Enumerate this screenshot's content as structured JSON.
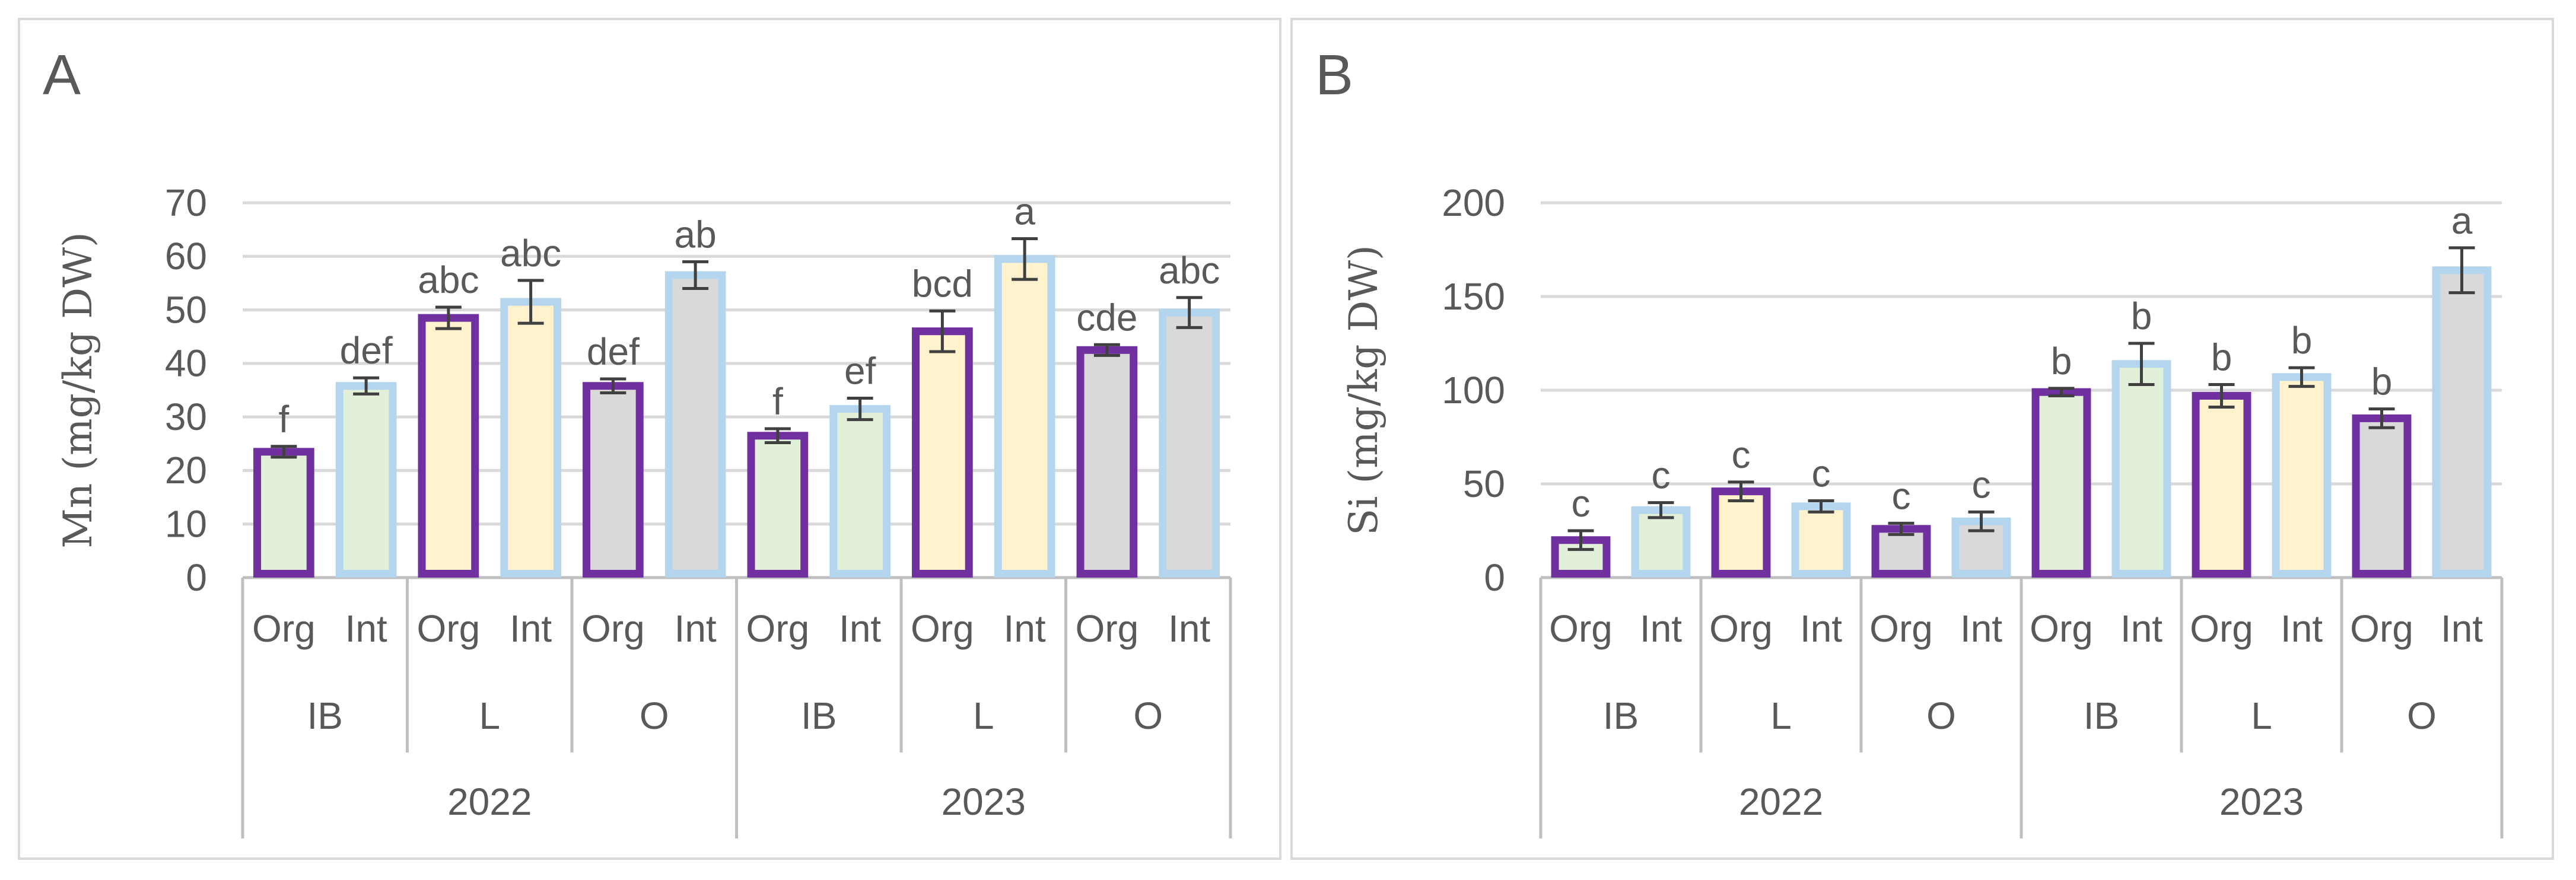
{
  "chart_data": [
    {
      "type": "bar",
      "panel": "A",
      "ylabel": "Mn (mg/kg DW)",
      "ylim": [
        0,
        70
      ],
      "yticks": [
        0,
        10,
        20,
        30,
        40,
        50,
        60,
        70
      ],
      "years": [
        {
          "label": "2022",
          "sites": [
            {
              "label": "IB",
              "bars": [
                {
                  "label": "Org",
                  "value": 23.5,
                  "error": 1.0,
                  "letter": "f"
                },
                {
                  "label": "Int",
                  "value": 35.8,
                  "error": 1.5,
                  "letter": "def"
                }
              ]
            },
            {
              "label": "L",
              "bars": [
                {
                  "label": "Org",
                  "value": 48.5,
                  "error": 2.0,
                  "letter": "abc"
                },
                {
                  "label": "Int",
                  "value": 51.5,
                  "error": 4.0,
                  "letter": "abc"
                }
              ]
            },
            {
              "label": "O",
              "bars": [
                {
                  "label": "Org",
                  "value": 35.8,
                  "error": 1.3,
                  "letter": "def"
                },
                {
                  "label": "Int",
                  "value": 56.5,
                  "error": 2.5,
                  "letter": "ab"
                }
              ]
            }
          ]
        },
        {
          "label": "2023",
          "sites": [
            {
              "label": "IB",
              "bars": [
                {
                  "label": "Org",
                  "value": 26.5,
                  "error": 1.3,
                  "letter": "f"
                },
                {
                  "label": "Int",
                  "value": 31.5,
                  "error": 2.0,
                  "letter": "ef"
                }
              ]
            },
            {
              "label": "L",
              "bars": [
                {
                  "label": "Org",
                  "value": 46.0,
                  "error": 3.8,
                  "letter": "bcd"
                },
                {
                  "label": "Int",
                  "value": 59.5,
                  "error": 3.8,
                  "letter": "a"
                }
              ]
            },
            {
              "label": "O",
              "bars": [
                {
                  "label": "Org",
                  "value": 42.5,
                  "error": 1.0,
                  "letter": "cde"
                },
                {
                  "label": "Int",
                  "value": 49.5,
                  "error": 2.8,
                  "letter": "abc"
                }
              ]
            }
          ]
        }
      ]
    },
    {
      "type": "bar",
      "panel": "B",
      "ylabel": "Si (mg/kg DW)",
      "ylim": [
        0,
        200
      ],
      "yticks": [
        0,
        50,
        100,
        150,
        200
      ],
      "years": [
        {
          "label": "2022",
          "sites": [
            {
              "label": "IB",
              "bars": [
                {
                  "label": "Org",
                  "value": 20,
                  "error": 5,
                  "letter": "c"
                },
                {
                  "label": "Int",
                  "value": 36,
                  "error": 4,
                  "letter": "c"
                }
              ]
            },
            {
              "label": "L",
              "bars": [
                {
                  "label": "Org",
                  "value": 46,
                  "error": 5,
                  "letter": "c"
                },
                {
                  "label": "Int",
                  "value": 38,
                  "error": 3,
                  "letter": "c"
                }
              ]
            },
            {
              "label": "O",
              "bars": [
                {
                  "label": "Org",
                  "value": 26,
                  "error": 3,
                  "letter": "c"
                },
                {
                  "label": "Int",
                  "value": 30,
                  "error": 5,
                  "letter": "c"
                }
              ]
            }
          ]
        },
        {
          "label": "2023",
          "sites": [
            {
              "label": "IB",
              "bars": [
                {
                  "label": "Org",
                  "value": 99,
                  "error": 2,
                  "letter": "b"
                },
                {
                  "label": "Int",
                  "value": 114,
                  "error": 11,
                  "letter": "b"
                }
              ]
            },
            {
              "label": "L",
              "bars": [
                {
                  "label": "Org",
                  "value": 97,
                  "error": 6,
                  "letter": "b"
                },
                {
                  "label": "Int",
                  "value": 107,
                  "error": 5,
                  "letter": "b"
                }
              ]
            },
            {
              "label": "O",
              "bars": [
                {
                  "label": "Org",
                  "value": 85,
                  "error": 5,
                  "letter": "b"
                },
                {
                  "label": "Int",
                  "value": 164,
                  "error": 12,
                  "letter": "a"
                }
              ]
            }
          ]
        }
      ]
    }
  ],
  "colors": {
    "org_border": "#7030a0",
    "int_border": "#b4d5ee",
    "fill_IB": "#e2f0d9",
    "fill_L": "#fff2cc",
    "fill_O": "#d9d9d9",
    "grid": "#d9d9d9",
    "axis": "#bfbfbf",
    "error": "#404040",
    "text": "#595959"
  }
}
